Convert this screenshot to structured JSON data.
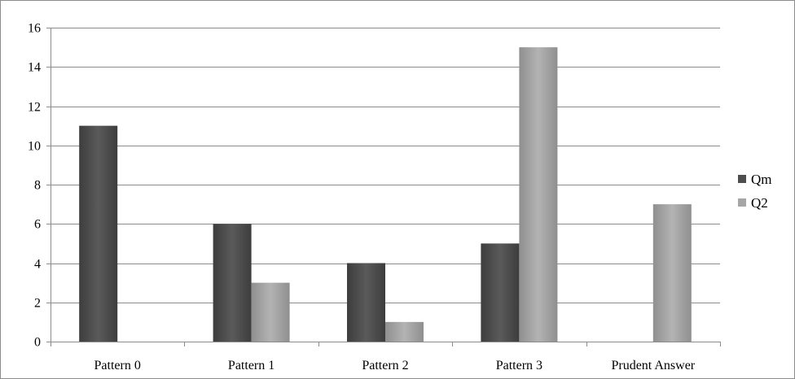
{
  "chart_data": {
    "type": "bar",
    "title": "",
    "xlabel": "",
    "ylabel": "",
    "categories": [
      "Pattern 0",
      "Pattern 1",
      "Pattern 2",
      "Pattern 3",
      "Prudent Answer"
    ],
    "series": [
      {
        "name": "Qm",
        "values": [
          11,
          6,
          4,
          5,
          0
        ],
        "color": "#4d4d4d"
      },
      {
        "name": "Q2",
        "values": [
          0,
          3,
          1,
          15,
          7
        ],
        "color": "#a6a6a6"
      }
    ],
    "ylim": [
      0,
      16
    ],
    "yticks": [
      0,
      2,
      4,
      6,
      8,
      10,
      12,
      14,
      16
    ],
    "grid": true,
    "legend": "right",
    "colors": {
      "gridline": "#8c8c8c",
      "axis": "#8c8c8c",
      "border": "#8c8c8c"
    }
  }
}
